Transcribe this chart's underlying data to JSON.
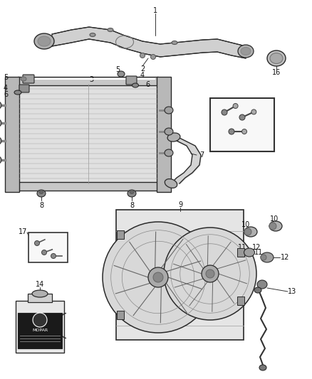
{
  "bg_color": "#ffffff",
  "fig_width": 4.38,
  "fig_height": 5.33,
  "dpi": 100,
  "line_color": "#2a2a2a",
  "gray_dark": "#555555",
  "gray_mid": "#888888",
  "gray_light": "#cccccc",
  "gray_lighter": "#e8e8e8",
  "label_fs": 7.0
}
